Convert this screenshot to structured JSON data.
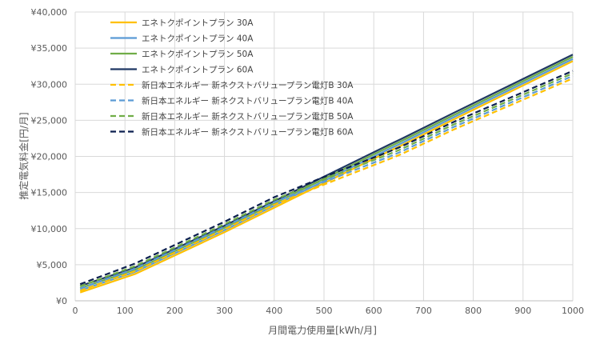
{
  "chart_data": {
    "type": "line",
    "title": "",
    "xlabel": "月間電力使用量[kWh/月]",
    "ylabel": "推定電気料金[円/月]",
    "xlim": [
      0,
      1000
    ],
    "ylim": [
      0,
      40000
    ],
    "x_ticks": [
      "0",
      "100",
      "200",
      "300",
      "400",
      "500",
      "600",
      "700",
      "800",
      "900",
      "1000"
    ],
    "y_ticks": [
      "¥0",
      "¥5,000",
      "¥10,000",
      "¥15,000",
      "¥20,000",
      "¥25,000",
      "¥30,000",
      "¥35,000",
      "¥40,000"
    ],
    "grid": true,
    "legend_position": "top-left",
    "x": [
      10,
      120,
      300,
      400,
      500,
      630,
      655,
      760,
      1000
    ],
    "series": [
      {
        "name": "エネトクポイントプラン 30A",
        "color": "#FFC000",
        "dash": false,
        "values": [
          1150,
          3700,
          9500,
          12900,
          16300,
          20700,
          21500,
          25100,
          33200
        ]
      },
      {
        "name": "エネトクポイントプラン 40A",
        "color": "#5B9BD5",
        "dash": false,
        "values": [
          1450,
          4000,
          9800,
          13200,
          16600,
          21000,
          21800,
          25400,
          33500
        ]
      },
      {
        "name": "エネトクポイントプラン 50A",
        "color": "#70AD47",
        "dash": false,
        "values": [
          1750,
          4300,
          10100,
          13500,
          16900,
          21300,
          22100,
          25700,
          33800
        ]
      },
      {
        "name": "エネトクポイントプラン 60A",
        "color": "#1F3864",
        "dash": false,
        "values": [
          2050,
          4600,
          10400,
          13800,
          17200,
          21600,
          22400,
          26000,
          34100
        ]
      },
      {
        "name": "新日本エネルギー 新ネクストバリュープラン電灯B 30A",
        "color": "#FFC000",
        "dash": true,
        "values": [
          1400,
          4100,
          9900,
          13300,
          16100,
          19600,
          20300,
          23700,
          30800
        ]
      },
      {
        "name": "新日本エネルギー 新ネクストバリュープラン電灯B 40A",
        "color": "#5B9BD5",
        "dash": true,
        "values": [
          1700,
          4450,
          10250,
          13650,
          16450,
          19950,
          20650,
          24050,
          31150
        ]
      },
      {
        "name": "新日本エネルギー 新ネクストバリュープラン電灯B 50A",
        "color": "#70AD47",
        "dash": true,
        "values": [
          2000,
          4800,
          10600,
          14000,
          16800,
          20300,
          21000,
          24400,
          31500
        ]
      },
      {
        "name": "新日本エネルギー 新ネクストバリュープラン電灯B 60A",
        "color": "#0B1F4F",
        "dash": true,
        "values": [
          2300,
          5150,
          10950,
          14350,
          17150,
          20650,
          21350,
          24750,
          31850
        ]
      }
    ]
  }
}
